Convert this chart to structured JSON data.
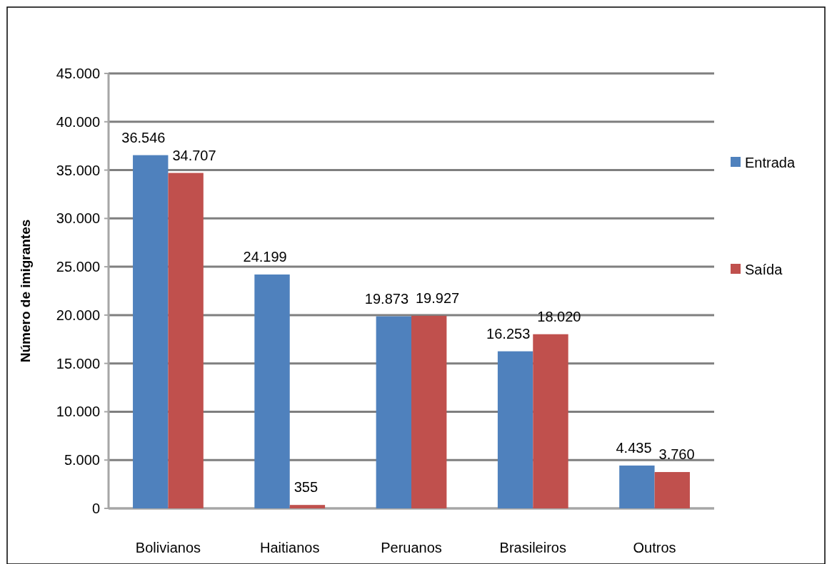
{
  "chart_data": {
    "type": "bar",
    "ylabel": "Número de imigrantes",
    "categories": [
      "Bolivianos",
      "Haitianos",
      "Peruanos",
      "Brasileiros",
      "Outros"
    ],
    "series": [
      {
        "name": "Entrada",
        "color": "#4f81bd",
        "values": [
          36546,
          24199,
          19873,
          16253,
          4435
        ],
        "value_labels": [
          "36.546",
          "24.199",
          "19.873",
          "16.253",
          "4.435"
        ]
      },
      {
        "name": "Saída",
        "color": "#c0504d",
        "values": [
          34707,
          355,
          19927,
          18020,
          3760
        ],
        "value_labels": [
          "34.707",
          "355",
          "19.927",
          "18.020",
          "3.760"
        ]
      }
    ],
    "ylim": [
      0,
      45000
    ],
    "yticks": [
      {
        "value": 0,
        "label": "0"
      },
      {
        "value": 5000,
        "label": "5.000"
      },
      {
        "value": 10000,
        "label": "10.000"
      },
      {
        "value": 15000,
        "label": "15.000"
      },
      {
        "value": 20000,
        "label": "20.000"
      },
      {
        "value": 25000,
        "label": "25.000"
      },
      {
        "value": 30000,
        "label": "30.000"
      },
      {
        "value": 35000,
        "label": "35.000"
      },
      {
        "value": 40000,
        "label": "40.000"
      },
      {
        "value": 45000,
        "label": "45.000"
      }
    ],
    "grid": "y",
    "legend": "right"
  }
}
